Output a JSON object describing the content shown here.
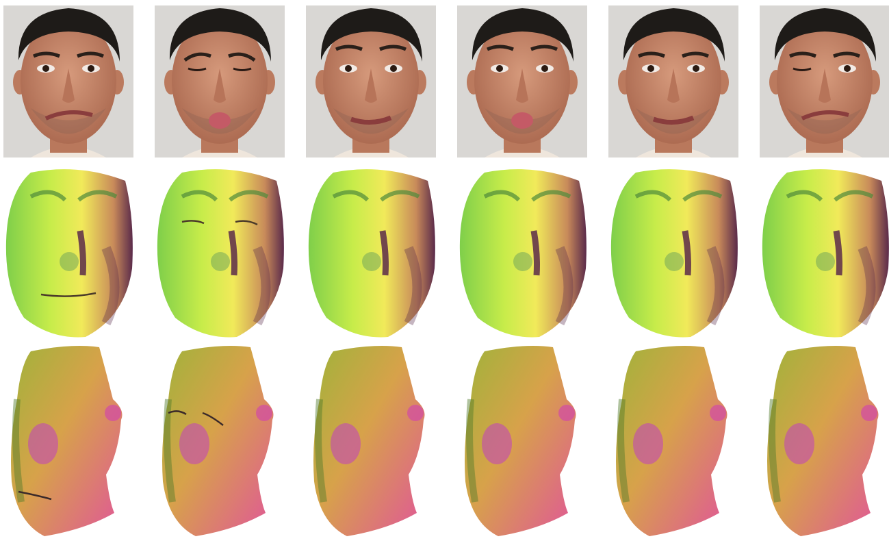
{
  "figure": {
    "columns": [
      {
        "expression": "smirk"
      },
      {
        "expression": "pucker-squint"
      },
      {
        "expression": "raised-brows-sad"
      },
      {
        "expression": "pucker-raised"
      },
      {
        "expression": "lip-press"
      },
      {
        "expression": "wink-smirk"
      }
    ],
    "rows": [
      "photo",
      "mesh-frontal",
      "mesh-side"
    ],
    "colors": {
      "background": "#ffffff",
      "photo_bg": "#d9d7d4",
      "skin": "#c98a6e",
      "hair": "#1e1b18",
      "mesh_front_a": "#c7ec4a",
      "mesh_front_b": "#f1ea5a",
      "mesh_front_dark": "#5a2a4a",
      "mesh_side_a": "#d7a24a",
      "mesh_side_b": "#e0559a",
      "mesh_side_c": "#9fb33a"
    }
  }
}
